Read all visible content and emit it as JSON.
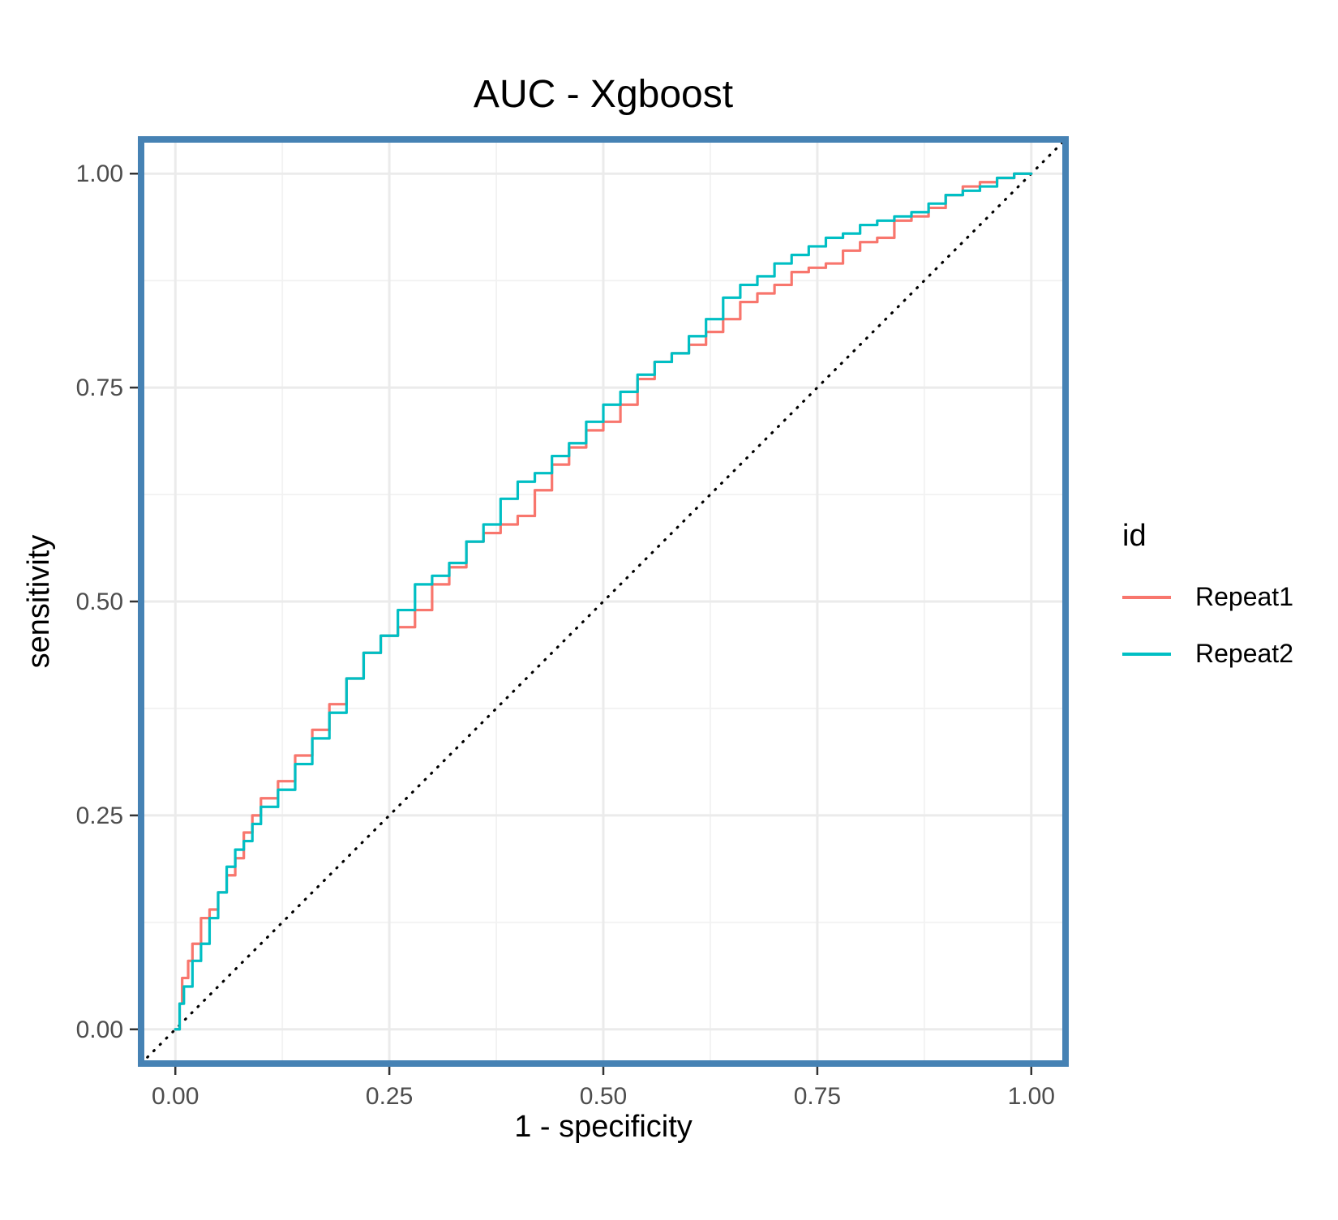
{
  "chart_data": {
    "type": "line",
    "title": "AUC - Xgboost",
    "xlabel": "1 - specificity",
    "ylabel": "sensitivity",
    "xlim": [
      -0.04,
      1.04
    ],
    "ylim": [
      -0.04,
      1.04
    ],
    "x_ticks": [
      0,
      0.25,
      0.5,
      0.75,
      1
    ],
    "y_ticks": [
      0,
      0.25,
      0.5,
      0.75,
      1
    ],
    "x_tick_labels": [
      "0.00",
      "0.25",
      "0.50",
      "0.75",
      "1.00"
    ],
    "y_tick_labels": [
      "0.00",
      "0.25",
      "0.50",
      "0.75",
      "1.00"
    ],
    "grid": true,
    "legend": {
      "title": "id",
      "placement": "right"
    },
    "reference_line": {
      "style": "dotted",
      "color": "#000000",
      "points": [
        [
          -0.04,
          -0.04
        ],
        [
          1.04,
          1.04
        ]
      ]
    },
    "panel_border_color": "#4682b4",
    "series": [
      {
        "name": "Repeat1",
        "color": "#f8766d",
        "points": [
          [
            0.0,
            0.0
          ],
          [
            0.005,
            0.03
          ],
          [
            0.008,
            0.06
          ],
          [
            0.015,
            0.08
          ],
          [
            0.02,
            0.1
          ],
          [
            0.03,
            0.13
          ],
          [
            0.04,
            0.14
          ],
          [
            0.05,
            0.16
          ],
          [
            0.06,
            0.18
          ],
          [
            0.07,
            0.2
          ],
          [
            0.08,
            0.23
          ],
          [
            0.09,
            0.25
          ],
          [
            0.1,
            0.27
          ],
          [
            0.12,
            0.29
          ],
          [
            0.14,
            0.32
          ],
          [
            0.16,
            0.35
          ],
          [
            0.18,
            0.38
          ],
          [
            0.2,
            0.41
          ],
          [
            0.22,
            0.44
          ],
          [
            0.24,
            0.46
          ],
          [
            0.26,
            0.47
          ],
          [
            0.28,
            0.49
          ],
          [
            0.3,
            0.52
          ],
          [
            0.32,
            0.54
          ],
          [
            0.34,
            0.57
          ],
          [
            0.36,
            0.58
          ],
          [
            0.38,
            0.59
          ],
          [
            0.4,
            0.6
          ],
          [
            0.42,
            0.63
          ],
          [
            0.44,
            0.66
          ],
          [
            0.46,
            0.68
          ],
          [
            0.48,
            0.7
          ],
          [
            0.5,
            0.71
          ],
          [
            0.52,
            0.73
          ],
          [
            0.54,
            0.76
          ],
          [
            0.56,
            0.78
          ],
          [
            0.58,
            0.79
          ],
          [
            0.6,
            0.8
          ],
          [
            0.62,
            0.815
          ],
          [
            0.64,
            0.83
          ],
          [
            0.66,
            0.85
          ],
          [
            0.68,
            0.86
          ],
          [
            0.7,
            0.87
          ],
          [
            0.72,
            0.885
          ],
          [
            0.74,
            0.89
          ],
          [
            0.76,
            0.895
          ],
          [
            0.78,
            0.91
          ],
          [
            0.8,
            0.92
          ],
          [
            0.82,
            0.925
          ],
          [
            0.84,
            0.945
          ],
          [
            0.86,
            0.95
          ],
          [
            0.88,
            0.96
          ],
          [
            0.9,
            0.975
          ],
          [
            0.92,
            0.985
          ],
          [
            0.94,
            0.99
          ],
          [
            0.96,
            0.995
          ],
          [
            0.98,
            1.0
          ],
          [
            1.0,
            1.0
          ]
        ]
      },
      {
        "name": "Repeat2",
        "color": "#00bfc4",
        "points": [
          [
            0.0,
            0.0
          ],
          [
            0.005,
            0.03
          ],
          [
            0.01,
            0.05
          ],
          [
            0.02,
            0.08
          ],
          [
            0.03,
            0.1
          ],
          [
            0.04,
            0.13
          ],
          [
            0.05,
            0.16
          ],
          [
            0.06,
            0.19
          ],
          [
            0.07,
            0.21
          ],
          [
            0.08,
            0.22
          ],
          [
            0.09,
            0.24
          ],
          [
            0.1,
            0.26
          ],
          [
            0.12,
            0.28
          ],
          [
            0.14,
            0.31
          ],
          [
            0.16,
            0.34
          ],
          [
            0.18,
            0.37
          ],
          [
            0.2,
            0.41
          ],
          [
            0.22,
            0.44
          ],
          [
            0.24,
            0.46
          ],
          [
            0.26,
            0.49
          ],
          [
            0.28,
            0.52
          ],
          [
            0.3,
            0.53
          ],
          [
            0.32,
            0.545
          ],
          [
            0.34,
            0.57
          ],
          [
            0.36,
            0.59
          ],
          [
            0.38,
            0.62
          ],
          [
            0.4,
            0.64
          ],
          [
            0.42,
            0.65
          ],
          [
            0.44,
            0.67
          ],
          [
            0.46,
            0.685
          ],
          [
            0.48,
            0.71
          ],
          [
            0.5,
            0.73
          ],
          [
            0.52,
            0.745
          ],
          [
            0.54,
            0.765
          ],
          [
            0.56,
            0.78
          ],
          [
            0.58,
            0.79
          ],
          [
            0.6,
            0.81
          ],
          [
            0.62,
            0.83
          ],
          [
            0.64,
            0.855
          ],
          [
            0.66,
            0.87
          ],
          [
            0.68,
            0.88
          ],
          [
            0.7,
            0.895
          ],
          [
            0.72,
            0.905
          ],
          [
            0.74,
            0.915
          ],
          [
            0.76,
            0.925
          ],
          [
            0.78,
            0.93
          ],
          [
            0.8,
            0.94
          ],
          [
            0.82,
            0.945
          ],
          [
            0.84,
            0.95
          ],
          [
            0.86,
            0.955
          ],
          [
            0.88,
            0.965
          ],
          [
            0.9,
            0.975
          ],
          [
            0.92,
            0.98
          ],
          [
            0.94,
            0.985
          ],
          [
            0.96,
            0.995
          ],
          [
            0.98,
            1.0
          ],
          [
            1.0,
            1.0
          ]
        ]
      }
    ]
  }
}
